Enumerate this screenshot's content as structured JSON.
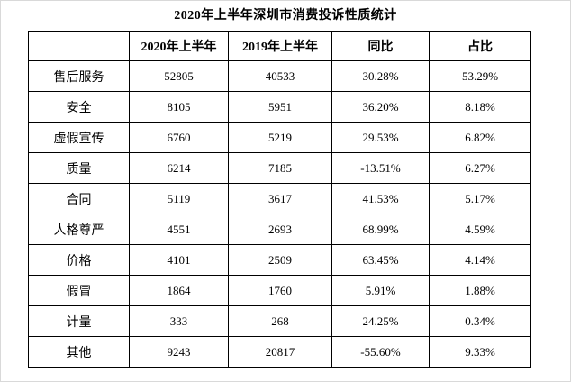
{
  "title": "2020年上半年深圳市消费投诉性质统计",
  "colors": {
    "background": "#ffffff",
    "table_border": "#000000",
    "text": "#000000",
    "outer_frame": "#d9d9d9"
  },
  "chart_data": {
    "type": "table",
    "title": "2020年上半年深圳市消费投诉性质统计",
    "columns": [
      "",
      "2020年上半年",
      "2019年上半年",
      "同比",
      "占比"
    ],
    "rows": [
      [
        "售后服务",
        "52805",
        "40533",
        "30.28%",
        "53.29%"
      ],
      [
        "安全",
        "8105",
        "5951",
        "36.20%",
        "8.18%"
      ],
      [
        "虚假宣传",
        "6760",
        "5219",
        "29.53%",
        "6.82%"
      ],
      [
        "质量",
        "6214",
        "7185",
        "-13.51%",
        "6.27%"
      ],
      [
        "合同",
        "5119",
        "3617",
        "41.53%",
        "5.17%"
      ],
      [
        "人格尊严",
        "4551",
        "2693",
        "68.99%",
        "4.59%"
      ],
      [
        "价格",
        "4101",
        "2509",
        "63.45%",
        "4.14%"
      ],
      [
        "假冒",
        "1864",
        "1760",
        "5.91%",
        "1.88%"
      ],
      [
        "计量",
        "333",
        "268",
        "24.25%",
        "0.34%"
      ],
      [
        "其他",
        "9243",
        "20817",
        "-55.60%",
        "9.33%"
      ]
    ],
    "row_categories_meaning": "complaint nature categories",
    "grid": true,
    "legend_position": "none"
  }
}
